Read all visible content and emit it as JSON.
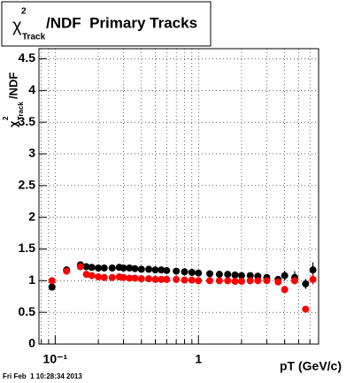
{
  "chart_data": {
    "type": "scatter",
    "title_symbol": "χ",
    "title_sup": "2",
    "title_sub": "Track",
    "title_rest": "/NDF  Primary Tracks",
    "y_label_symbol": "χ",
    "y_label_sup": "2",
    "y_label_sub": "Track",
    "y_label_rest": "/NDF",
    "x_label": "pT (GeV/c)",
    "footer": "Fri Feb  1 10:28:34 2013",
    "x_log": true,
    "grid": true,
    "xlim": [
      0.077,
      6.9
    ],
    "xticks": [
      {
        "value": 0.1,
        "label": "10⁻¹"
      },
      1
    ],
    "xminorticks": [
      0.08,
      0.09,
      0.2,
      0.3,
      0.4,
      0.5,
      0.6,
      0.7,
      0.8,
      0.9,
      2,
      3,
      4,
      5,
      6
    ],
    "ylim": [
      0,
      4.66
    ],
    "yticks": [
      0,
      0.5,
      1,
      1.5,
      2,
      2.5,
      3,
      3.5,
      4,
      4.5
    ],
    "x": [
      0.095,
      0.12,
      0.15,
      0.165,
      0.18,
      0.2,
      0.22,
      0.25,
      0.28,
      0.3,
      0.33,
      0.36,
      0.4,
      0.45,
      0.5,
      0.55,
      0.6,
      0.7,
      0.8,
      0.9,
      1.0,
      1.2,
      1.4,
      1.6,
      1.8,
      2.0,
      2.3,
      2.6,
      3.0,
      3.6,
      4.0,
      4.7,
      5.6,
      6.3
    ],
    "series": [
      {
        "color": "#000000",
        "values": [
          0.9,
          1.17,
          1.25,
          1.22,
          1.21,
          1.2,
          1.2,
          1.2,
          1.21,
          1.2,
          1.2,
          1.19,
          1.18,
          1.18,
          1.17,
          1.17,
          1.16,
          1.15,
          1.14,
          1.13,
          1.12,
          1.11,
          1.1,
          1.1,
          1.09,
          1.08,
          1.08,
          1.07,
          1.05,
          1.02,
          1.08,
          1.05,
          0.95,
          1.17
        ],
        "errors": [
          0.05,
          0.03,
          0.03,
          0.02,
          0.02,
          0.02,
          0.02,
          0.02,
          0.02,
          0.02,
          0.02,
          0.02,
          0.02,
          0.02,
          0.02,
          0.02,
          0.02,
          0.02,
          0.02,
          0.02,
          0.02,
          0.02,
          0.02,
          0.02,
          0.02,
          0.02,
          0.03,
          0.03,
          0.04,
          0.05,
          0.08,
          0.1,
          0.08,
          0.12
        ]
      },
      {
        "color": "#ff0000",
        "values": [
          1.0,
          1.15,
          1.22,
          1.1,
          1.08,
          1.06,
          1.05,
          1.05,
          1.06,
          1.05,
          1.04,
          1.04,
          1.03,
          1.03,
          1.02,
          1.02,
          1.02,
          1.02,
          1.01,
          1.01,
          1.0,
          1.0,
          1.0,
          1.0,
          0.99,
          0.99,
          1.0,
          1.0,
          1.0,
          0.98,
          0.86,
          1.0,
          0.55,
          1.02
        ],
        "errors": [
          0.05,
          0.03,
          0.03,
          0.02,
          0.02,
          0.02,
          0.02,
          0.02,
          0.02,
          0.02,
          0.02,
          0.02,
          0.02,
          0.02,
          0.02,
          0.02,
          0.02,
          0.02,
          0.02,
          0.02,
          0.02,
          0.02,
          0.02,
          0.02,
          0.02,
          0.02,
          0.03,
          0.03,
          0.04,
          0.05,
          0.06,
          0.06,
          0.04,
          0.08
        ]
      }
    ]
  }
}
